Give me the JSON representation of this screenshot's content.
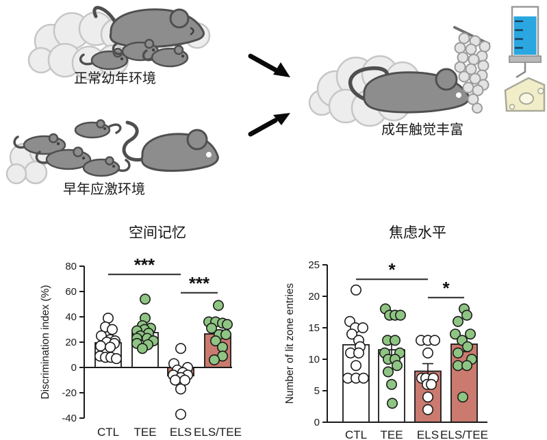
{
  "illustration": {
    "labels": {
      "normal_env": "正常幼年环境",
      "stress_env": "早年应激环境",
      "adult_enrichment": "成年触觉丰富"
    },
    "colors": {
      "mouse_gray": "#8d8d8d",
      "mouse_outline": "#4f4f4f",
      "bedding": "#ededed",
      "bedding_outline": "#c6c6c6",
      "bead": "#e3e3e3",
      "syringe_blue": "#2aa7e0",
      "cheese": "#f1edc9",
      "arrow_black": "#0a0a0a"
    }
  },
  "chart_data": [
    {
      "type": "bar",
      "title": "空间记忆",
      "ylabel": "Discrimination index (%)",
      "ylim": [
        -40,
        80
      ],
      "yticks": [
        -40,
        -20,
        0,
        20,
        40,
        60,
        80
      ],
      "categories": [
        "CTL",
        "TEE",
        "ELS",
        "ELS/TEE"
      ],
      "bar_means": [
        19.5,
        27.5,
        -6.5,
        26.5
      ],
      "bar_sems": [
        2.5,
        2.5,
        2.5,
        3
      ],
      "bar_fills": [
        "#ffffff",
        "#ffffff",
        "#ca7a6e",
        "#ca7a6e"
      ],
      "point_fills": [
        "#ffffff",
        "#8fc583",
        "#ffffff",
        "#8fc583"
      ],
      "points": [
        [
          39,
          32,
          30,
          25,
          22,
          21,
          20,
          19,
          17,
          16,
          9,
          8,
          8,
          7
        ],
        [
          54,
          39,
          33,
          31,
          30,
          29,
          27,
          25,
          23,
          23,
          21,
          19,
          18,
          15
        ],
        [
          15,
          3,
          0,
          -2,
          -4,
          -6,
          -6,
          -8,
          -10,
          -10,
          -17,
          -37
        ],
        [
          49,
          36,
          36,
          35,
          34,
          31,
          26,
          26,
          21,
          16,
          9,
          6
        ]
      ],
      "jitter": [
        [
          0,
          -4,
          6,
          -10,
          3,
          10,
          -2,
          9,
          -11,
          3,
          -12,
          -4,
          4,
          12
        ],
        [
          0,
          0,
          -4,
          8,
          -1,
          -12,
          5,
          -7,
          -12,
          3,
          12,
          -12,
          4,
          -4
        ],
        [
          0,
          -10,
          10,
          -5,
          3,
          -11,
          10,
          0,
          -8,
          6,
          0,
          0
        ],
        [
          1,
          -13,
          -3,
          7,
          14,
          -9,
          2,
          12,
          -3,
          7,
          7,
          -5
        ]
      ],
      "significance": [
        {
          "from": 0,
          "to": 2,
          "y": 73.5,
          "label": "***"
        },
        {
          "from": 2,
          "to": 3,
          "y": 59,
          "label": "***"
        }
      ]
    },
    {
      "type": "bar",
      "title": "焦虑水平",
      "ylabel": "Number of lit zone entries",
      "ylim": [
        0,
        25
      ],
      "yticks": [
        0,
        5,
        10,
        15,
        20,
        25
      ],
      "categories": [
        "CTL",
        "TEE",
        "ELS",
        "ELS/TEE"
      ],
      "bar_means": [
        12.3,
        11.5,
        8.1,
        12.4
      ],
      "bar_sems": [
        1.3,
        1.2,
        1.2,
        1.2
      ],
      "bar_fills": [
        "#ffffff",
        "#ffffff",
        "#ca7a6e",
        "#ca7a6e"
      ],
      "point_fills": [
        "#ffffff",
        "#8fc583",
        "#ffffff",
        "#8fc583"
      ],
      "points": [
        [
          21,
          16,
          15,
          15,
          14,
          13,
          12,
          11,
          11,
          9,
          7,
          7,
          7
        ],
        [
          18,
          17,
          17,
          17,
          13,
          13,
          11,
          11,
          10,
          10,
          9,
          8,
          6,
          3
        ],
        [
          13,
          13,
          13,
          11,
          7,
          7,
          7,
          6,
          6,
          4,
          2
        ],
        [
          18,
          17,
          16,
          14,
          14,
          13,
          12,
          11,
          10,
          9,
          9,
          4
        ]
      ],
      "jitter": [
        [
          0,
          -9,
          -1,
          10,
          -6,
          4,
          6,
          -8,
          4,
          0,
          -12,
          0,
          11
        ],
        [
          -9,
          -3,
          5,
          13,
          -6,
          5,
          -10,
          12,
          -5,
          5,
          8,
          -5,
          0,
          1
        ],
        [
          -10,
          0,
          10,
          0,
          -9,
          -3,
          8,
          -1,
          5,
          0,
          0
        ],
        [
          0,
          4,
          -9,
          -13,
          9,
          -3,
          5,
          -9,
          11,
          -9,
          4,
          -2
        ]
      ],
      "significance": [
        {
          "from": 0,
          "to": 2,
          "y": 22.7,
          "label": "*"
        },
        {
          "from": 2,
          "to": 3,
          "y": 19.8,
          "label": "*"
        }
      ]
    }
  ]
}
